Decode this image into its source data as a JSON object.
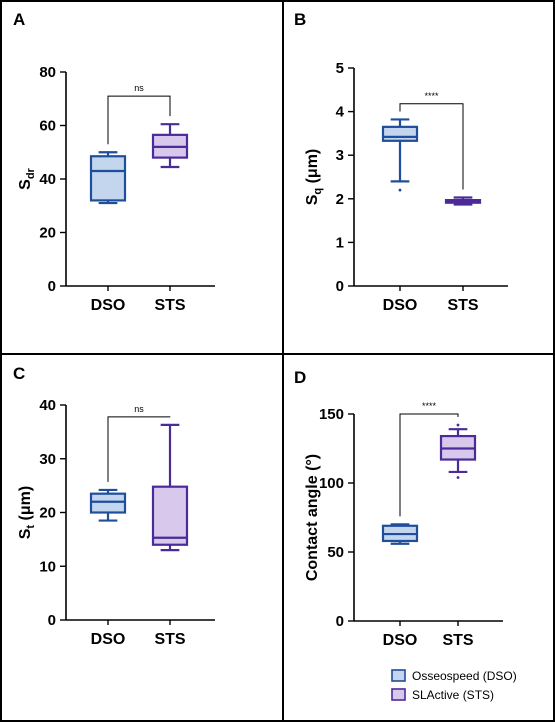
{
  "colors": {
    "dso_stroke": "#1f4e9c",
    "dso_fill": "#c3d6ee",
    "sts_stroke": "#4b2a99",
    "sts_fill": "#d8c8ec",
    "frame": "#000000"
  },
  "legend": {
    "dso": "Osseospeed (DSO)",
    "sts": "SLActive (STS)"
  },
  "chart_data": [
    {
      "panel": "A",
      "type": "box",
      "ylabel_main": "S",
      "ylabel_sub": "dr",
      "ylabel_suffix": "",
      "ylim": [
        0,
        80
      ],
      "yticks": [
        0,
        20,
        40,
        60,
        80
      ],
      "categories": [
        "DSO",
        "STS"
      ],
      "boxes": [
        {
          "category": "DSO",
          "min": 31,
          "q1": 32,
          "median": 43,
          "q3": 48.5,
          "max": 50,
          "outliers": []
        },
        {
          "category": "STS",
          "min": 44.5,
          "q1": 48,
          "median": 52,
          "q3": 56.5,
          "max": 60.5,
          "outliers": []
        }
      ],
      "significance": "ns",
      "bracket_y": 71
    },
    {
      "panel": "B",
      "type": "box",
      "ylabel_main": "S",
      "ylabel_sub": "q",
      "ylabel_suffix": " (μm)",
      "ylim": [
        0,
        5
      ],
      "yticks": [
        0,
        1,
        2,
        3,
        4,
        5
      ],
      "categories": [
        "DSO",
        "STS"
      ],
      "boxes": [
        {
          "category": "DSO",
          "min": 2.4,
          "q1": 3.33,
          "median": 3.42,
          "q3": 3.65,
          "max": 3.82,
          "outliers": [
            2.2
          ]
        },
        {
          "category": "STS",
          "min": 1.87,
          "q1": 1.91,
          "median": 1.94,
          "q3": 1.97,
          "max": 2.03,
          "outliers": []
        }
      ],
      "significance": "****",
      "bracket_y": 4.18
    },
    {
      "panel": "C",
      "type": "box",
      "ylabel_main": "S",
      "ylabel_sub": "t",
      "ylabel_suffix": " (μm)",
      "ylim": [
        0,
        40
      ],
      "yticks": [
        0,
        10,
        20,
        30,
        40
      ],
      "categories": [
        "DSO",
        "STS"
      ],
      "boxes": [
        {
          "category": "DSO",
          "min": 18.5,
          "q1": 20,
          "median": 22,
          "q3": 23.5,
          "max": 24.2,
          "outliers": []
        },
        {
          "category": "STS",
          "min": 13,
          "q1": 14,
          "median": 15.3,
          "q3": 24.8,
          "max": 36.3,
          "outliers": []
        }
      ],
      "significance": "ns",
      "bracket_y": 37.8
    },
    {
      "panel": "D",
      "type": "box",
      "ylabel_main": "Contact angle (°)",
      "ylabel_sub": "",
      "ylabel_suffix": "",
      "ylim": [
        0,
        150
      ],
      "yticks": [
        0,
        50,
        100,
        150
      ],
      "categories": [
        "DSO",
        "STS"
      ],
      "boxes": [
        {
          "category": "DSO",
          "min": 56,
          "q1": 58,
          "median": 63,
          "q3": 69,
          "max": 70,
          "outliers": []
        },
        {
          "category": "STS",
          "min": 108,
          "q1": 117,
          "median": 125,
          "q3": 134,
          "max": 139,
          "outliers": [
            104,
            142
          ]
        }
      ],
      "significance": "****",
      "bracket_y": 150
    }
  ]
}
